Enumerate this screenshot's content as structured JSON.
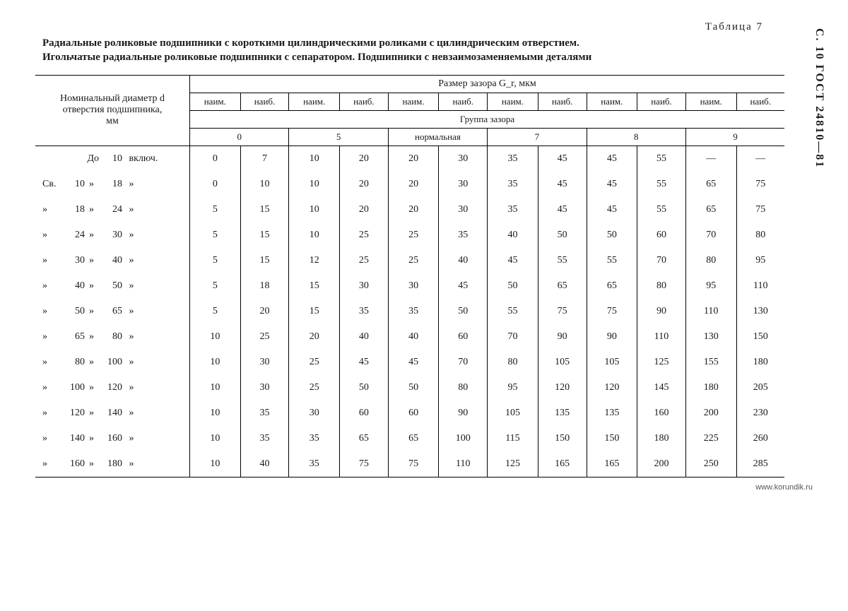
{
  "side_label": "С. 10 ГОСТ 24810—81",
  "table_number": "Таблица 7",
  "title_line1": "Радиальные роликовые подшипники с короткими цилиндрическими роликами с цилиндрическим отверстием.",
  "title_line2": "Игольчатые радиальные роликовые подшипники с сепаратором. Подшипники с невзаимозаменяемыми деталями",
  "header": {
    "col_left_l1": "Номинальный диаметр d",
    "col_left_l2": "отверстия подшипника,",
    "col_left_l3": "мм",
    "top_right": "Размер зазора G_r, мкм",
    "min": "наим.",
    "max": "наиб.",
    "group_label": "Группа зазора",
    "groups": [
      "0",
      "5",
      "нормальная",
      "7",
      "8",
      "9"
    ]
  },
  "row_prefix_sv": "Св.",
  "row_do": "До",
  "row_incl": "включ.",
  "rows": [
    {
      "sv": "",
      "from": "",
      "s1": "До",
      "to": "10",
      "s2": "включ.",
      "v": [
        "0",
        "7",
        "10",
        "20",
        "20",
        "30",
        "35",
        "45",
        "45",
        "55",
        "—",
        "—"
      ]
    },
    {
      "sv": "Св.",
      "from": "10",
      "s1": "»",
      "to": "18",
      "s2": "»",
      "v": [
        "0",
        "10",
        "10",
        "20",
        "20",
        "30",
        "35",
        "45",
        "45",
        "55",
        "65",
        "75"
      ]
    },
    {
      "sv": "»",
      "from": "18",
      "s1": "»",
      "to": "24",
      "s2": "»",
      "v": [
        "5",
        "15",
        "10",
        "20",
        "20",
        "30",
        "35",
        "45",
        "45",
        "55",
        "65",
        "75"
      ]
    },
    {
      "sv": "»",
      "from": "24",
      "s1": "»",
      "to": "30",
      "s2": "»",
      "v": [
        "5",
        "15",
        "10",
        "25",
        "25",
        "35",
        "40",
        "50",
        "50",
        "60",
        "70",
        "80"
      ]
    },
    {
      "sv": "»",
      "from": "30",
      "s1": "»",
      "to": "40",
      "s2": "»",
      "v": [
        "5",
        "15",
        "12",
        "25",
        "25",
        "40",
        "45",
        "55",
        "55",
        "70",
        "80",
        "95"
      ]
    },
    {
      "sv": "»",
      "from": "40",
      "s1": "»",
      "to": "50",
      "s2": "»",
      "v": [
        "5",
        "18",
        "15",
        "30",
        "30",
        "45",
        "50",
        "65",
        "65",
        "80",
        "95",
        "110"
      ]
    },
    {
      "sv": "»",
      "from": "50",
      "s1": "»",
      "to": "65",
      "s2": "»",
      "v": [
        "5",
        "20",
        "15",
        "35",
        "35",
        "50",
        "55",
        "75",
        "75",
        "90",
        "110",
        "130"
      ]
    },
    {
      "sv": "»",
      "from": "65",
      "s1": "»",
      "to": "80",
      "s2": "»",
      "v": [
        "10",
        "25",
        "20",
        "40",
        "40",
        "60",
        "70",
        "90",
        "90",
        "110",
        "130",
        "150"
      ]
    },
    {
      "sv": "»",
      "from": "80",
      "s1": "»",
      "to": "100",
      "s2": "»",
      "v": [
        "10",
        "30",
        "25",
        "45",
        "45",
        "70",
        "80",
        "105",
        "105",
        "125",
        "155",
        "180"
      ]
    },
    {
      "sv": "»",
      "from": "100",
      "s1": "»",
      "to": "120",
      "s2": "»",
      "v": [
        "10",
        "30",
        "25",
        "50",
        "50",
        "80",
        "95",
        "120",
        "120",
        "145",
        "180",
        "205"
      ]
    },
    {
      "sv": "»",
      "from": "120",
      "s1": "»",
      "to": "140",
      "s2": "»",
      "v": [
        "10",
        "35",
        "30",
        "60",
        "60",
        "90",
        "105",
        "135",
        "135",
        "160",
        "200",
        "230"
      ]
    },
    {
      "sv": "»",
      "from": "140",
      "s1": "»",
      "to": "160",
      "s2": "»",
      "v": [
        "10",
        "35",
        "35",
        "65",
        "65",
        "100",
        "115",
        "150",
        "150",
        "180",
        "225",
        "260"
      ]
    },
    {
      "sv": "»",
      "from": "160",
      "s1": "»",
      "to": "180",
      "s2": "»",
      "v": [
        "10",
        "40",
        "35",
        "75",
        "75",
        "110",
        "125",
        "165",
        "165",
        "200",
        "250",
        "285"
      ]
    }
  ],
  "watermark": "www.korundik.ru",
  "style": {
    "font_family": "Times New Roman",
    "text_color": "#1a1a1a",
    "border_color": "#000000",
    "background": "#ffffff"
  }
}
